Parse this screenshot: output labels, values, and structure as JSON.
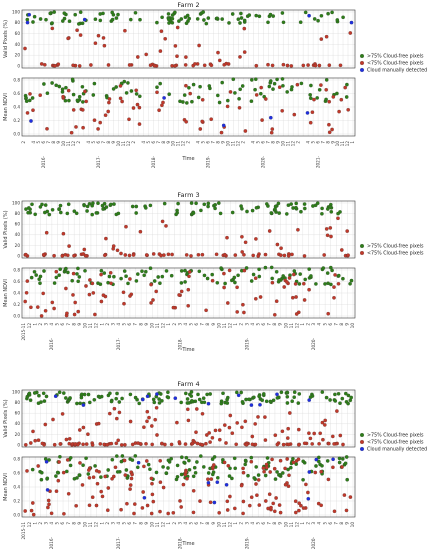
{
  "legend": {
    "items": [
      {
        "label": ">75% Cloud-free pixels",
        "color": "#2e7d1a"
      },
      {
        "label": "<75% Cloud-free pixels",
        "color": "#c0392b"
      },
      {
        "label": "Cloud manually detected",
        "color": "#1f2fe0"
      }
    ]
  },
  "chart_data": [
    {
      "type": "scatter",
      "title": "Farm 2",
      "xlabel": "Time",
      "top_ylabel": "Valid Pixels (%)",
      "bottom_ylabel": "Mean NDVI",
      "x_start": "2015-12",
      "x_end": "2021-01",
      "x_tick_labels": [
        "2",
        "",
        "4",
        "5",
        "6",
        "7",
        "8",
        "9",
        "10",
        "11",
        "12",
        "2",
        "",
        "4",
        "5",
        "6",
        "7",
        "8",
        "9",
        "10",
        "11",
        "12",
        "2",
        "",
        "4",
        "5",
        "6",
        "7",
        "8",
        "9",
        "10",
        "11",
        "12",
        "2",
        "",
        "4",
        "5",
        "6",
        "7",
        "8",
        "9",
        "10",
        "11",
        "12",
        "2",
        "",
        "4",
        "5",
        "6",
        "7",
        "8",
        "9",
        "10",
        "11",
        "12",
        "2",
        "",
        "4",
        "5",
        "6",
        "7",
        "8",
        "9",
        "10",
        "11",
        "12",
        "1"
      ],
      "year_labels": [
        "2016-",
        "2017-",
        "2018-",
        "2019-",
        "2020-",
        "2021-"
      ],
      "top_ylim": [
        0,
        100
      ],
      "top_yticks": [
        "0",
        "20",
        "40",
        "60",
        "80",
        "100"
      ],
      "bottom_ylim": [
        0,
        0.8
      ],
      "bottom_yticks": [
        "0.0",
        "0.2",
        "0.4",
        "0.6",
        "0.8"
      ],
      "grid": true,
      "legend_position": "right, beside valid pixels panel",
      "series": [
        {
          "name": ">75% Cloud-free pixels",
          "n_points": 95,
          "valid_pct_range": [
            78,
            100
          ],
          "ndvi_range": [
            0.45,
            0.82
          ]
        },
        {
          "name": "<75% Cloud-free pixels",
          "n_points": 75,
          "valid_pct_range": [
            0,
            72
          ],
          "ndvi_range": [
            0.0,
            0.75
          ]
        },
        {
          "name": "Cloud manually detected",
          "n_points": 5,
          "valid_pct_range": [
            80,
            100
          ],
          "ndvi_range": [
            0.05,
            0.6
          ]
        }
      ]
    },
    {
      "type": "scatter",
      "title": "Farm 3",
      "xlabel": "Time",
      "top_ylabel": "Valid Pixels (%)",
      "bottom_ylabel": "Mean NDVI",
      "x_start": "2015-12",
      "x_end": "2020-10",
      "x_tick_labels": [
        "2015-11",
        "12",
        "1",
        "2",
        "3",
        "4",
        "5",
        "6",
        "7",
        "8",
        "9",
        "10",
        "11",
        "12",
        "1",
        "2",
        "3",
        "4",
        "5",
        "6",
        "7",
        "8",
        "9",
        "10",
        "11",
        "12",
        "1",
        "2",
        "3",
        "4",
        "5",
        "6",
        "7",
        "8",
        "9",
        "10",
        "11",
        "12",
        "1",
        "2",
        "3",
        "4",
        "5",
        "6",
        "7",
        "8",
        "9",
        "10",
        "11",
        "12",
        "1",
        "2",
        "3",
        "4",
        "5",
        "6",
        "7",
        "8",
        "9",
        "10"
      ],
      "year_labels": [
        "2016-",
        "2017-",
        "2018-",
        "2019-",
        "2020-"
      ],
      "top_ylim": [
        0,
        100
      ],
      "top_yticks": [
        "0",
        "20",
        "40",
        "60",
        "80",
        "100"
      ],
      "bottom_ylim": [
        0,
        0.8
      ],
      "bottom_yticks": [
        "0.0",
        "0.2",
        "0.4",
        "0.6",
        "0.8"
      ],
      "grid": true,
      "legend_position": "right, beside valid pixels panel",
      "series": [
        {
          "name": ">75% Cloud-free pixels",
          "n_points": 110,
          "valid_pct_range": [
            78,
            100
          ],
          "ndvi_range": [
            0.55,
            0.85
          ]
        },
        {
          "name": "<75% Cloud-free pixels",
          "n_points": 85,
          "valid_pct_range": [
            0,
            72
          ],
          "ndvi_range": [
            0.0,
            0.8
          ]
        }
      ]
    },
    {
      "type": "scatter",
      "title": "Farm 4",
      "xlabel": "Time",
      "top_ylabel": "Valid Pixels (%)",
      "bottom_ylabel": "Mean NDVI",
      "x_start": "2015-12",
      "x_end": "2020-10",
      "x_tick_labels": [
        "2015-11",
        "12",
        "1",
        "2",
        "3",
        "4",
        "5",
        "6",
        "7",
        "8",
        "9",
        "10",
        "11",
        "12",
        "1",
        "2",
        "3",
        "4",
        "5",
        "6",
        "7",
        "8",
        "9",
        "10",
        "11",
        "12",
        "1",
        "2",
        "3",
        "4",
        "5",
        "6",
        "7",
        "8",
        "9",
        "10",
        "11",
        "12",
        "1",
        "2",
        "3",
        "4",
        "5",
        "6",
        "7",
        "8",
        "9",
        "10",
        "11",
        "12",
        "1",
        "2",
        "3",
        "4",
        "5",
        "6",
        "7",
        "8",
        "9",
        "10"
      ],
      "year_labels": [
        "2016-",
        "2017-",
        "2018-",
        "2019-",
        "2020-"
      ],
      "top_ylim": [
        0,
        100
      ],
      "top_yticks": [
        "0",
        "20",
        "40",
        "60",
        "80",
        "100"
      ],
      "bottom_ylim": [
        0,
        0.8
      ],
      "bottom_yticks": [
        "0.0",
        "0.2",
        "0.4",
        "0.6",
        "0.8"
      ],
      "grid": true,
      "legend_position": "right, beside valid pixels panel",
      "series": [
        {
          "name": ">75% Cloud-free pixels",
          "n_points": 140,
          "valid_pct_range": [
            78,
            100
          ],
          "ndvi_range": [
            0.5,
            0.85
          ]
        },
        {
          "name": "<75% Cloud-free pixels",
          "n_points": 150,
          "valid_pct_range": [
            0,
            72
          ],
          "ndvi_range": [
            0.0,
            0.8
          ]
        },
        {
          "name": "Cloud manually detected",
          "n_points": 12,
          "valid_pct_range": [
            70,
            100
          ],
          "ndvi_range": [
            0.15,
            0.8
          ]
        }
      ]
    }
  ]
}
